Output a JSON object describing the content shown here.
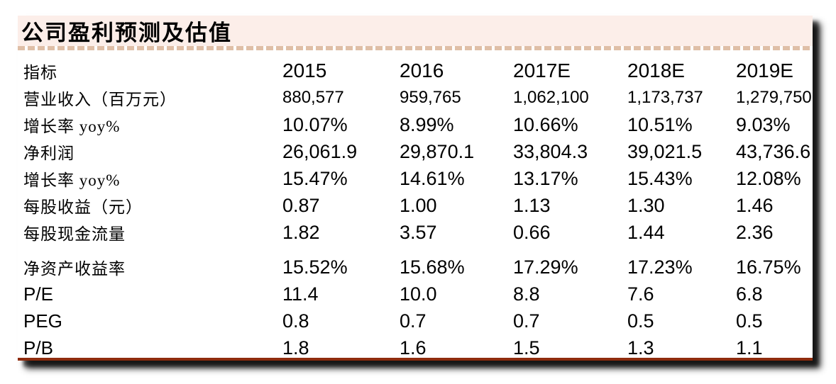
{
  "table": {
    "title": "公司盈利预测及估值",
    "header": [
      "指标",
      "2015",
      "2016",
      "2017E",
      "2018E",
      "2019E"
    ],
    "rows": [
      {
        "label": "营业收入（百万元）",
        "values": [
          "880,577",
          "959,765",
          "1,062,100",
          "1,173,737",
          "1,279,750"
        ]
      },
      {
        "label": "增长率 yoy%",
        "values": [
          "10.07%",
          "8.99%",
          "10.66%",
          "10.51%",
          "9.03%"
        ]
      },
      {
        "label": "净利润",
        "values": [
          "26,061.9",
          "29,870.1",
          "33,804.3",
          "39,021.5",
          "43,736.6"
        ]
      },
      {
        "label": "增长率 yoy%",
        "values": [
          "15.47%",
          "14.61%",
          "13.17%",
          "15.43%",
          "12.08%"
        ]
      },
      {
        "label": "每股收益（元）",
        "values": [
          "0.87",
          "1.00",
          "1.13",
          "1.30",
          "1.46"
        ]
      },
      {
        "label": "每股现金流量",
        "values": [
          "1.82",
          "3.57",
          "0.66",
          "1.44",
          "2.36"
        ]
      },
      {
        "label": "净资产收益率",
        "values": [
          "15.52%",
          "15.68%",
          "17.29%",
          "17.23%",
          "16.75%"
        ],
        "section_break": true
      },
      {
        "label": "P/E",
        "values": [
          "11.4",
          "10.0",
          "8.8",
          "7.6",
          "6.8"
        ]
      },
      {
        "label": "PEG",
        "values": [
          "0.8",
          "0.7",
          "0.7",
          "0.5",
          "0.5"
        ]
      },
      {
        "label": "P/B",
        "values": [
          "1.8",
          "1.6",
          "1.5",
          "1.3",
          "1.1"
        ]
      }
    ],
    "colors": {
      "title_bg": "#fceee9",
      "dash_color": "#dfbfa7",
      "bottom_line": "#8e2b0d",
      "text": "#000000"
    }
  }
}
